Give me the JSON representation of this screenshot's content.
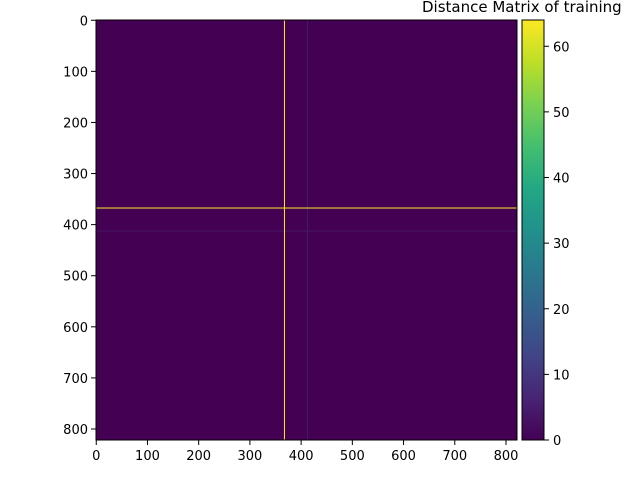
{
  "chart_data": {
    "type": "heatmap",
    "title": "Distance Matrix of training",
    "xlabel": "",
    "ylabel": "",
    "size": 822,
    "xlim": [
      0,
      822
    ],
    "ylim": [
      822,
      0
    ],
    "x_ticks": [
      0,
      100,
      200,
      300,
      400,
      500,
      600,
      700,
      800
    ],
    "y_ticks": [
      0,
      100,
      200,
      300,
      400,
      500,
      600,
      700,
      800
    ],
    "colormap": "viridis",
    "color_range": [
      0,
      64
    ],
    "colorbar_ticks": [
      0,
      10,
      20,
      30,
      40,
      50,
      60
    ],
    "background_value": 0,
    "highlight_rows": [
      {
        "index": 367,
        "value": 64
      },
      {
        "index": 412,
        "value": 4
      }
    ],
    "highlight_cols": [
      {
        "index": 367,
        "value": 64
      },
      {
        "index": 412,
        "value": 4
      }
    ],
    "grid": false
  }
}
